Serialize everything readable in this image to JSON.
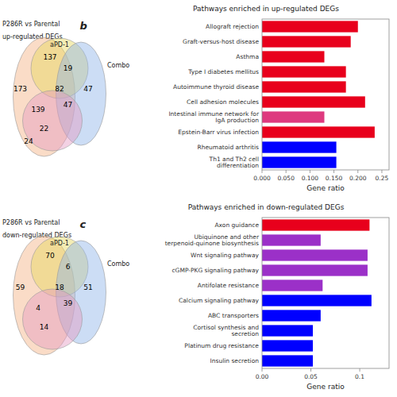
{
  "chart_data": [
    {
      "type": "venn",
      "title": "P286R vs Parental",
      "subtitle": "up-regulated DEGs",
      "annotations": [
        "b",
        "aPD-1",
        "Combo"
      ],
      "values": [
        173,
        137,
        19,
        82,
        139,
        47,
        47,
        22,
        24
      ]
    },
    {
      "type": "bar",
      "orientation": "horizontal",
      "title": "Pathways enriched in up-regulated DEGs",
      "x_label": "Gene ratio",
      "categories": [
        "Allograft rejection",
        "Graft-versus-host disease",
        "Asthma",
        "Type I diabetes mellitus",
        "Autoimmune thyroid disease",
        "Cell adhesion molecules",
        "Intestinal immune network for IgA production",
        "Epstein-Barr virus infection",
        "Rheumatoid arthritis",
        "Th1 and Th2 cell differentiation"
      ],
      "values": [
        0.2,
        0.185,
        0.13,
        0.175,
        0.175,
        0.215,
        0.13,
        0.235,
        0.155,
        0.155
      ],
      "colors": [
        "#e8001c",
        "#e8001c",
        "#e8001c",
        "#e8001c",
        "#e8001c",
        "#e8001c",
        "#de3a7f",
        "#e8001c",
        "#0000ff",
        "#0000ff"
      ],
      "xlim": [
        0,
        0.265
      ],
      "xticks": [
        {
          "value": 0,
          "label": "0.000"
        },
        {
          "value": 0.05,
          "label": "0.050"
        },
        {
          "value": 0.1,
          "label": "0.100"
        },
        {
          "value": 0.15,
          "label": "0.150"
        },
        {
          "value": 0.2,
          "label": "0.200"
        },
        0.25
      ],
      "grid": false
    },
    {
      "type": "venn",
      "title": "P286R vs Parental",
      "subtitle": "down-regulated DEGs",
      "annotations": [
        "c",
        "aPD-1",
        "Combo"
      ],
      "values": [
        59,
        70,
        6,
        18,
        4,
        39,
        51,
        14
      ]
    },
    {
      "type": "bar",
      "orientation": "horizontal",
      "title": "Pathways enriched in down-regulated DEGs",
      "x_label": "Gene ratio",
      "categories": [
        "Axon guidance",
        "Ubiquinone and other terpenoid-quinone biosynthesis",
        "Wnt signaling pathway",
        "cGMP-PKG signaling pathway",
        "Antifolate resistance",
        "Calcium signaling pathway",
        "ABC transporters",
        "Cortisol synthesis and secretion",
        "Platinum drug resistance",
        "Insulin secretion"
      ],
      "values": [
        0.11,
        0.06,
        0.108,
        0.108,
        0.062,
        0.112,
        0.06,
        0.052,
        0.052,
        0.052
      ],
      "colors": [
        "#e8001c",
        "#9b30c8",
        "#9b30c8",
        "#9b30c8",
        "#9b30c8",
        "#0000ff",
        "#0000ff",
        "#0000ff",
        "#0000ff",
        "#0000ff"
      ],
      "xlim": [
        0,
        0.13
      ],
      "xticks": [
        {
          "value": 0,
          "label": "0.00"
        },
        0.05,
        0.1
      ],
      "grid": false
    }
  ]
}
